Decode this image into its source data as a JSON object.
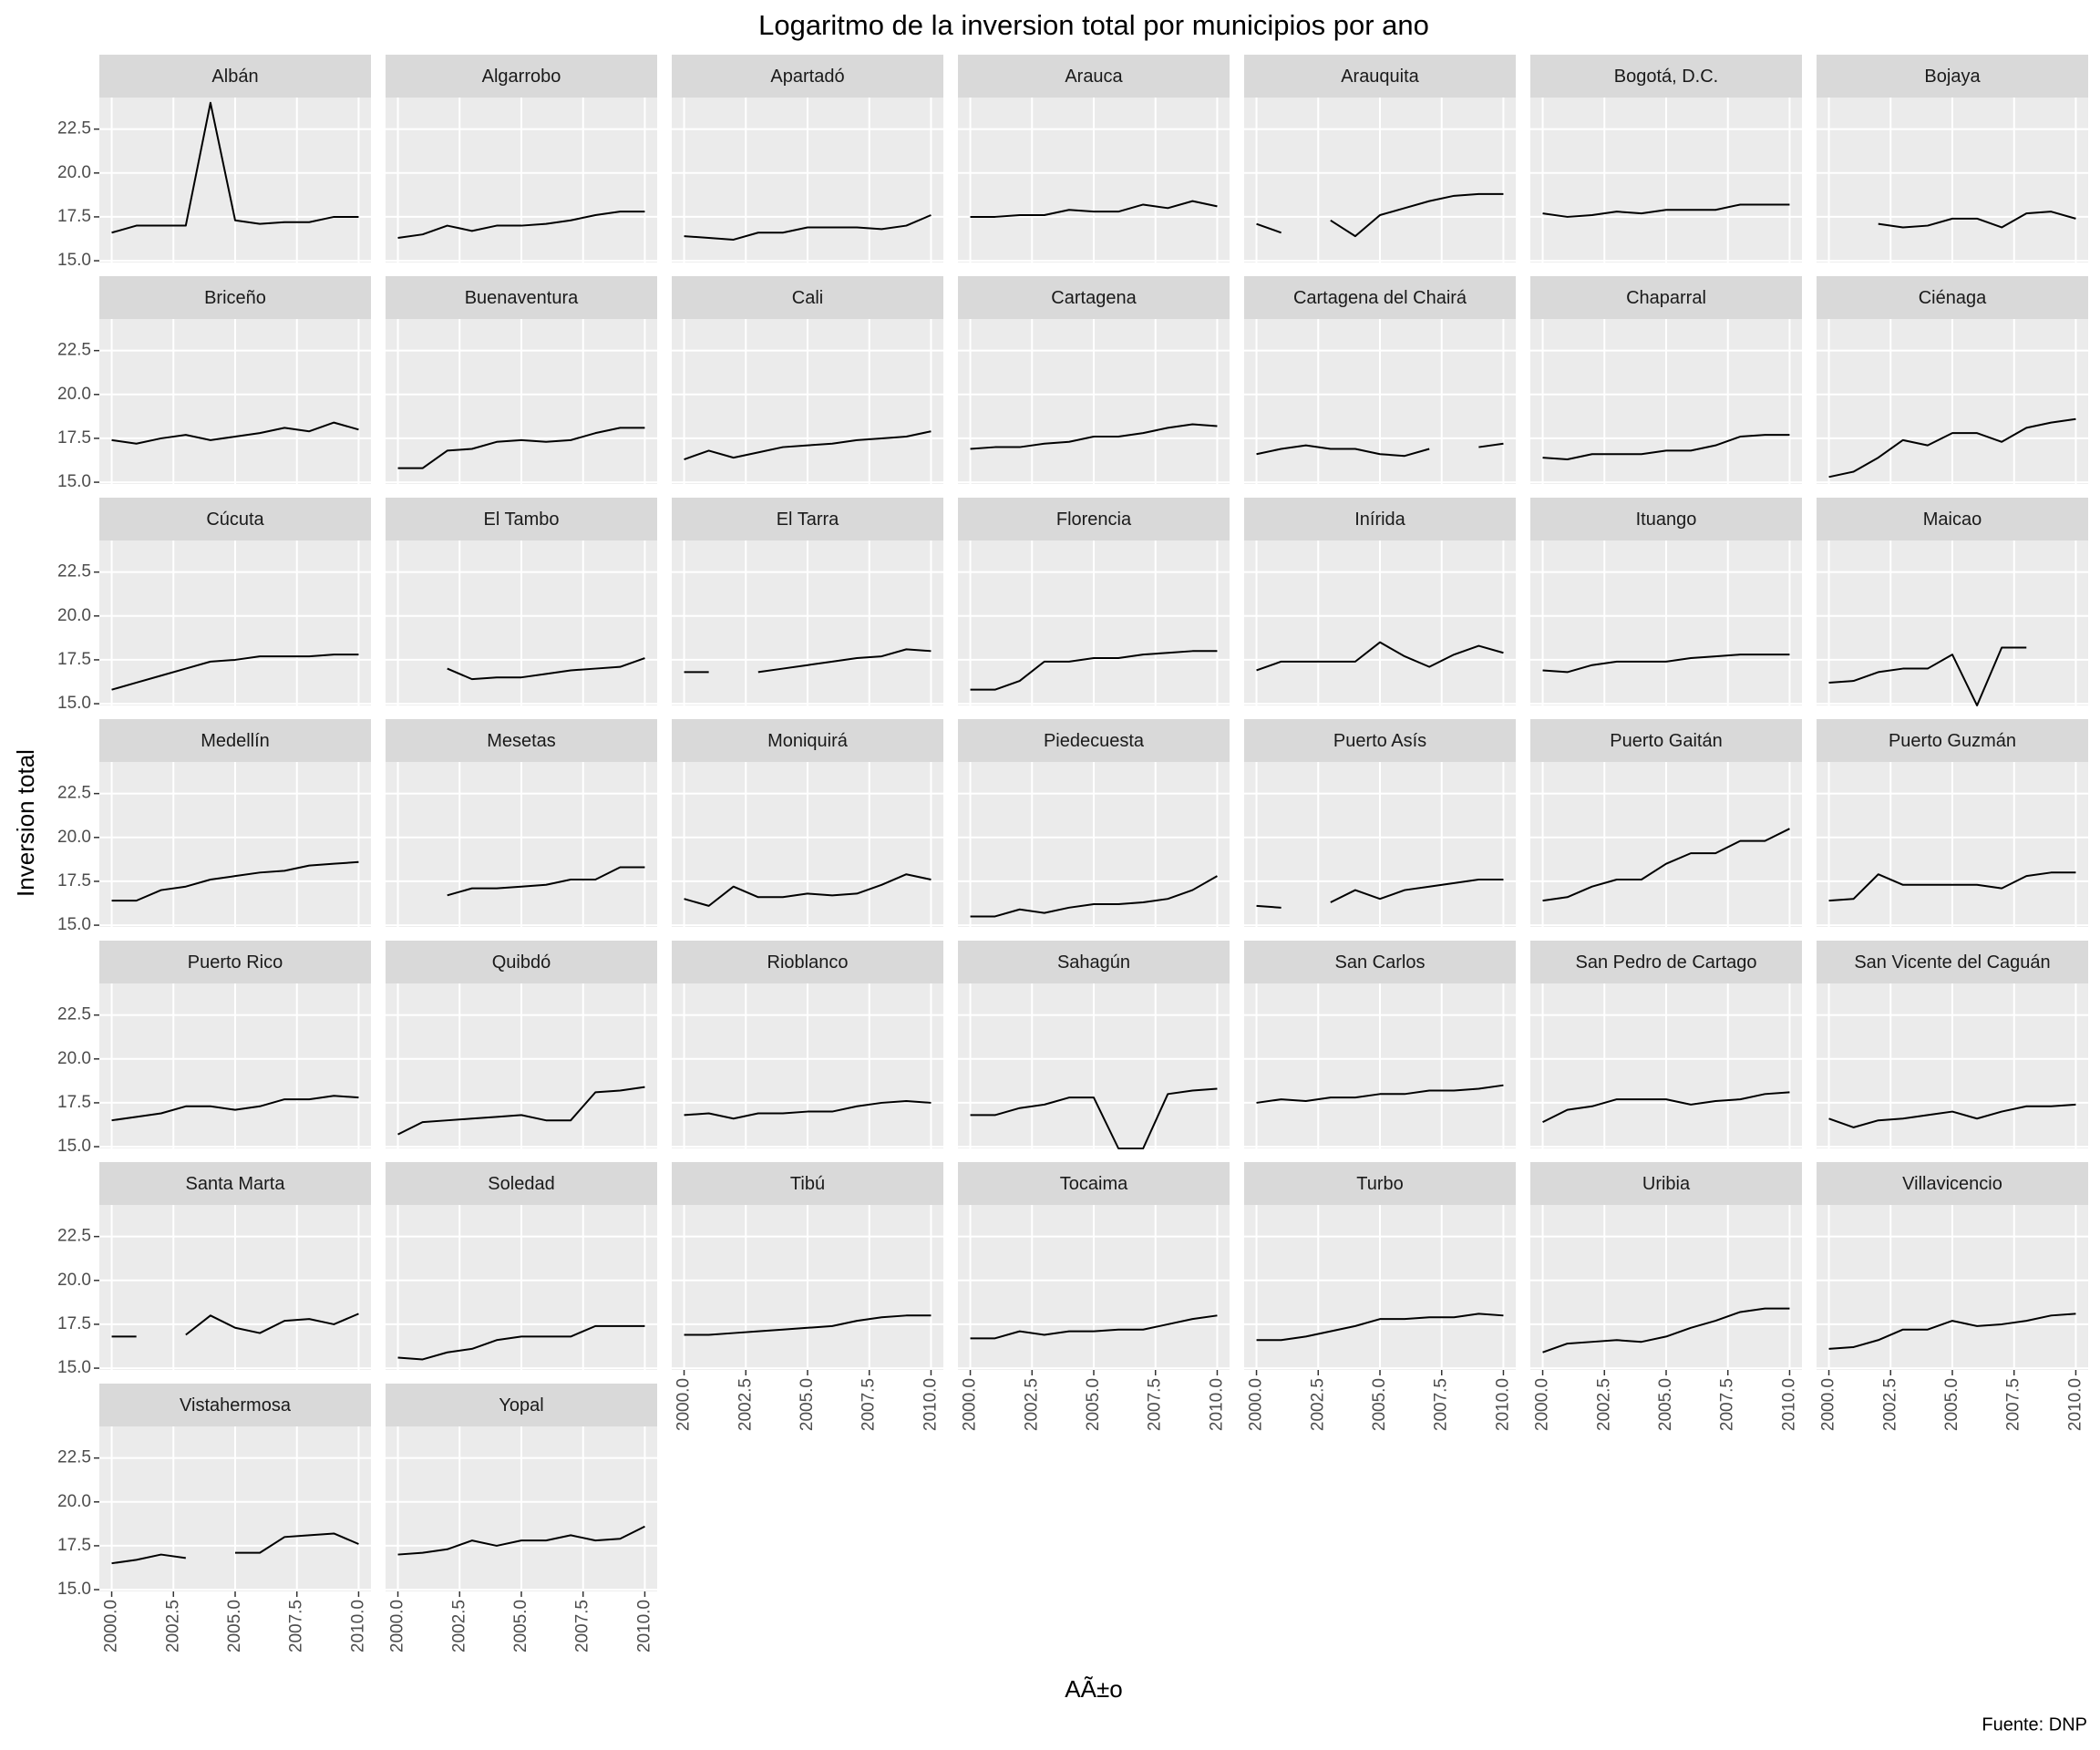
{
  "chart_data": {
    "type": "line",
    "title": "Logaritmo de la inversion total por municipios por ano",
    "x_label": "AÃ±o",
    "y_label": "Inversion total",
    "caption": "Fuente: DNP",
    "x": [
      2000,
      2001,
      2002,
      2003,
      2004,
      2005,
      2006,
      2007,
      2008,
      2009,
      2010
    ],
    "xlim": [
      1999.5,
      2010.5
    ],
    "xticks": [
      {
        "value": 2000,
        "label": "2000.0"
      },
      2002.5,
      {
        "value": 2005,
        "label": "2005.0"
      },
      2007.5,
      {
        "value": 2010,
        "label": "2010.0"
      }
    ],
    "ylim": [
      14.9,
      24.3
    ],
    "yticks": [
      {
        "value": 15,
        "label": "15.0"
      },
      17.5,
      {
        "value": 20,
        "label": "20.0"
      },
      22.5
    ],
    "ncol": 7,
    "color": "#000000",
    "grid": true,
    "facets": [
      {
        "title": "Albán",
        "values": [
          16.6,
          17.0,
          17.0,
          17.0,
          24.0,
          17.3,
          17.1,
          17.2,
          17.2,
          17.5,
          17.5
        ]
      },
      {
        "title": "Algarrobo",
        "values": [
          16.3,
          16.5,
          17.0,
          16.7,
          17.0,
          17.0,
          17.1,
          17.3,
          17.6,
          17.8,
          17.8
        ]
      },
      {
        "title": "Apartadó",
        "values": [
          16.4,
          16.3,
          16.2,
          16.6,
          16.6,
          16.9,
          16.9,
          16.9,
          16.8,
          17.0,
          17.6
        ]
      },
      {
        "title": "Arauca",
        "values": [
          17.5,
          17.5,
          17.6,
          17.6,
          17.9,
          17.8,
          17.8,
          18.2,
          18.0,
          18.4,
          18.1
        ]
      },
      {
        "title": "Arauquita",
        "values": [
          17.1,
          16.6,
          null,
          17.3,
          16.4,
          17.6,
          18.0,
          18.4,
          18.7,
          18.8,
          18.8
        ]
      },
      {
        "title": "Bogotá, D.C.",
        "values": [
          17.7,
          17.5,
          17.6,
          17.8,
          17.7,
          17.9,
          17.9,
          17.9,
          18.2,
          18.2,
          18.2
        ]
      },
      {
        "title": "Bojaya",
        "values": [
          null,
          null,
          17.1,
          16.9,
          17.0,
          17.4,
          17.4,
          16.9,
          17.7,
          17.8,
          17.4
        ]
      },
      {
        "title": "Briceño",
        "values": [
          17.4,
          17.2,
          17.5,
          17.7,
          17.4,
          17.6,
          17.8,
          18.1,
          17.9,
          18.4,
          18.0
        ]
      },
      {
        "title": "Buenaventura",
        "values": [
          15.8,
          15.8,
          16.8,
          16.9,
          17.3,
          17.4,
          17.3,
          17.4,
          17.8,
          18.1,
          18.1
        ]
      },
      {
        "title": "Cali",
        "values": [
          16.3,
          16.8,
          16.4,
          16.7,
          17.0,
          17.1,
          17.2,
          17.4,
          17.5,
          17.6,
          17.9
        ]
      },
      {
        "title": "Cartagena",
        "values": [
          16.9,
          17.0,
          17.0,
          17.2,
          17.3,
          17.6,
          17.6,
          17.8,
          18.1,
          18.3,
          18.2
        ]
      },
      {
        "title": "Cartagena del Chairá",
        "values": [
          16.6,
          16.9,
          17.1,
          16.9,
          16.9,
          16.6,
          16.5,
          16.9,
          null,
          17.0,
          17.2
        ]
      },
      {
        "title": "Chaparral",
        "values": [
          16.4,
          16.3,
          16.6,
          16.6,
          16.6,
          16.8,
          16.8,
          17.1,
          17.6,
          17.7,
          17.7
        ]
      },
      {
        "title": "Ciénaga",
        "values": [
          15.3,
          15.6,
          16.4,
          17.4,
          17.1,
          17.8,
          17.8,
          17.3,
          18.1,
          18.4,
          18.6
        ]
      },
      {
        "title": "Cúcuta",
        "values": [
          15.8,
          16.2,
          16.6,
          17.0,
          17.4,
          17.5,
          17.7,
          17.7,
          17.7,
          17.8,
          17.8
        ]
      },
      {
        "title": "El Tambo",
        "values": [
          null,
          null,
          17.0,
          16.4,
          16.5,
          16.5,
          16.7,
          16.9,
          17.0,
          17.1,
          17.6
        ]
      },
      {
        "title": "El Tarra",
        "values": [
          16.8,
          16.8,
          null,
          16.8,
          17.0,
          17.2,
          17.4,
          17.6,
          17.7,
          18.1,
          18.0
        ]
      },
      {
        "title": "Florencia",
        "values": [
          15.8,
          15.8,
          16.3,
          17.4,
          17.4,
          17.6,
          17.6,
          17.8,
          17.9,
          18.0,
          18.0
        ]
      },
      {
        "title": "Inírida",
        "values": [
          16.9,
          17.4,
          17.4,
          17.4,
          17.4,
          18.5,
          17.7,
          17.1,
          17.8,
          18.3,
          17.9
        ]
      },
      {
        "title": "Ituango",
        "values": [
          16.9,
          16.8,
          17.2,
          17.4,
          17.4,
          17.4,
          17.6,
          17.7,
          17.8,
          17.8,
          17.8
        ]
      },
      {
        "title": "Maicao",
        "values": [
          16.2,
          16.3,
          16.8,
          17.0,
          17.0,
          17.8,
          14.9,
          18.2,
          18.2,
          null,
          null
        ]
      },
      {
        "title": "Medellín",
        "values": [
          16.4,
          16.4,
          17.0,
          17.2,
          17.6,
          17.8,
          18.0,
          18.1,
          18.4,
          18.5,
          18.6
        ]
      },
      {
        "title": "Mesetas",
        "values": [
          null,
          null,
          16.7,
          17.1,
          17.1,
          17.2,
          17.3,
          17.6,
          17.6,
          18.3,
          18.3
        ]
      },
      {
        "title": "Moniquirá",
        "values": [
          16.5,
          16.1,
          17.2,
          16.6,
          16.6,
          16.8,
          16.7,
          16.8,
          17.3,
          17.9,
          17.6
        ]
      },
      {
        "title": "Piedecuesta",
        "values": [
          15.5,
          15.5,
          15.9,
          15.7,
          16.0,
          16.2,
          16.2,
          16.3,
          16.5,
          17.0,
          17.8
        ]
      },
      {
        "title": "Puerto Asís",
        "values": [
          16.1,
          16.0,
          null,
          16.3,
          17.0,
          16.5,
          17.0,
          17.2,
          17.4,
          17.6,
          17.6
        ]
      },
      {
        "title": "Puerto Gaitán",
        "values": [
          16.4,
          16.6,
          17.2,
          17.6,
          17.6,
          18.5,
          19.1,
          19.1,
          19.8,
          19.8,
          20.5
        ]
      },
      {
        "title": "Puerto Guzmán",
        "values": [
          16.4,
          16.5,
          17.9,
          17.3,
          17.3,
          17.3,
          17.3,
          17.1,
          17.8,
          18.0,
          18.0
        ]
      },
      {
        "title": "Puerto Rico",
        "values": [
          16.5,
          16.7,
          16.9,
          17.3,
          17.3,
          17.1,
          17.3,
          17.7,
          17.7,
          17.9,
          17.8
        ]
      },
      {
        "title": "Quibdó",
        "values": [
          15.7,
          16.4,
          16.5,
          16.6,
          16.7,
          16.8,
          16.5,
          16.5,
          18.1,
          18.2,
          18.4
        ]
      },
      {
        "title": "Rioblanco",
        "values": [
          16.8,
          16.9,
          16.6,
          16.9,
          16.9,
          17.0,
          17.0,
          17.3,
          17.5,
          17.6,
          17.5
        ]
      },
      {
        "title": "Sahagún",
        "values": [
          16.8,
          16.8,
          17.2,
          17.4,
          17.8,
          17.8,
          14.9,
          14.9,
          18.0,
          18.2,
          18.3
        ]
      },
      {
        "title": "San Carlos",
        "values": [
          17.5,
          17.7,
          17.6,
          17.8,
          17.8,
          18.0,
          18.0,
          18.2,
          18.2,
          18.3,
          18.5
        ]
      },
      {
        "title": "San Pedro de Cartago",
        "values": [
          16.4,
          17.1,
          17.3,
          17.7,
          17.7,
          17.7,
          17.4,
          17.6,
          17.7,
          18.0,
          18.1
        ]
      },
      {
        "title": "San Vicente del Caguán",
        "values": [
          16.6,
          16.1,
          16.5,
          16.6,
          16.8,
          17.0,
          16.6,
          17.0,
          17.3,
          17.3,
          17.4
        ]
      },
      {
        "title": "Santa Marta",
        "values": [
          16.8,
          16.8,
          null,
          16.9,
          18.0,
          17.3,
          17.0,
          17.7,
          17.8,
          17.5,
          18.1
        ]
      },
      {
        "title": "Soledad",
        "values": [
          15.6,
          15.5,
          15.9,
          16.1,
          16.6,
          16.8,
          16.8,
          16.8,
          17.4,
          17.4,
          17.4
        ]
      },
      {
        "title": "Tibú",
        "values": [
          16.9,
          16.9,
          17.0,
          17.1,
          17.2,
          17.3,
          17.4,
          17.7,
          17.9,
          18.0,
          18.0
        ]
      },
      {
        "title": "Tocaima",
        "values": [
          16.7,
          16.7,
          17.1,
          16.9,
          17.1,
          17.1,
          17.2,
          17.2,
          17.5,
          17.8,
          18.0
        ]
      },
      {
        "title": "Turbo",
        "values": [
          16.6,
          16.6,
          16.8,
          17.1,
          17.4,
          17.8,
          17.8,
          17.9,
          17.9,
          18.1,
          18.0
        ]
      },
      {
        "title": "Uribia",
        "values": [
          15.9,
          16.4,
          16.5,
          16.6,
          16.5,
          16.8,
          17.3,
          17.7,
          18.2,
          18.4,
          18.4
        ]
      },
      {
        "title": "Villavicencio",
        "values": [
          16.1,
          16.2,
          16.6,
          17.2,
          17.2,
          17.7,
          17.4,
          17.5,
          17.7,
          18.0,
          18.1
        ]
      },
      {
        "title": "Vistahermosa",
        "values": [
          16.5,
          16.7,
          17.0,
          16.8,
          null,
          17.1,
          17.1,
          18.0,
          18.1,
          18.2,
          17.6
        ]
      },
      {
        "title": "Yopal",
        "values": [
          17.0,
          17.1,
          17.3,
          17.8,
          17.5,
          17.8,
          17.8,
          18.1,
          17.8,
          17.9,
          18.6
        ]
      }
    ]
  }
}
